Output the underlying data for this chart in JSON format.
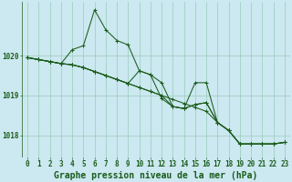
{
  "background_color": "#cce8f0",
  "grid_color": "#99ccbb",
  "line_color": "#1a5c1a",
  "xlabel": "Graphe pression niveau de la mer (hPa)",
  "xlabel_fontsize": 7,
  "tick_fontsize": 5.5,
  "xlim": [
    -0.5,
    23.5
  ],
  "ylim": [
    1017.45,
    1021.35
  ],
  "yticks": [
    1018,
    1019,
    1020
  ],
  "xticks": [
    0,
    1,
    2,
    3,
    4,
    5,
    6,
    7,
    8,
    9,
    10,
    11,
    12,
    13,
    14,
    15,
    16,
    17,
    18,
    19,
    20,
    21,
    22,
    23
  ],
  "series": [
    [
      1019.95,
      1019.9,
      1019.85,
      1019.8,
      1020.15,
      1020.25,
      1021.15,
      1020.65,
      1020.38,
      1020.27,
      1019.62,
      1019.52,
      1019.32,
      1018.72,
      1018.67,
      1018.77,
      1018.82,
      1018.32,
      1018.12,
      1017.78,
      1017.78,
      1017.78,
      1017.78,
      1017.82
    ],
    [
      1019.95,
      1019.9,
      1019.85,
      1019.8,
      1019.77,
      1019.7,
      1019.6,
      1019.5,
      1019.4,
      1019.3,
      1019.62,
      1019.52,
      1018.92,
      1018.72,
      1018.67,
      1019.32,
      1019.32,
      1018.32,
      1018.12,
      1017.78,
      1017.78,
      1017.78,
      1017.78,
      1017.82
    ],
    [
      1019.95,
      1019.9,
      1019.85,
      1019.8,
      1019.77,
      1019.7,
      1019.6,
      1019.5,
      1019.4,
      1019.3,
      1019.2,
      1019.1,
      1019.0,
      1018.72,
      1018.67,
      1018.77,
      1018.82,
      1018.32,
      1018.12,
      1017.78,
      1017.78,
      1017.78,
      1017.78,
      1017.82
    ],
    [
      1019.95,
      1019.9,
      1019.85,
      1019.8,
      1019.77,
      1019.7,
      1019.6,
      1019.5,
      1019.4,
      1019.3,
      1019.2,
      1019.1,
      1019.0,
      1018.9,
      1018.8,
      1018.7,
      1018.6,
      1018.32,
      1018.12,
      1017.78,
      1017.78,
      1017.78,
      1017.78,
      1017.82
    ]
  ]
}
